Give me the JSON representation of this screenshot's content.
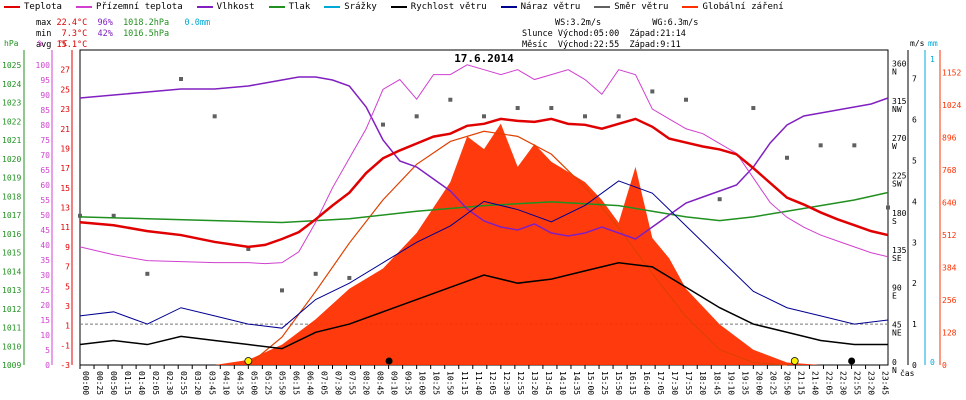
{
  "legend": [
    {
      "label": "Teplota",
      "color": "#e00000"
    },
    {
      "label": "Přízemní teplota",
      "color": "#d040d0"
    },
    {
      "label": "Vlhkost",
      "color": "#8020c0"
    },
    {
      "label": "Tlak",
      "color": "#209020"
    },
    {
      "label": "Srážky",
      "color": "#00a8d8"
    },
    {
      "label": "Rychlost větru",
      "color": "#000000"
    },
    {
      "label": "Náraz větru",
      "color": "#000090"
    },
    {
      "label": "Směr větru",
      "color": "#606060"
    },
    {
      "label": "Globální záření",
      "color": "#ff3000"
    }
  ],
  "stats": {
    "max_label": "max",
    "min_label": "min",
    "avg_label": "avg",
    "max_temp": "22.4°C",
    "max_hum": "96%",
    "max_press": "1018.2hPa",
    "max_rain": "0.0mm",
    "min_temp": "7.3°C",
    "min_hum": "42%",
    "min_press": "1016.5hPa",
    "avg_temp": "15.1°C",
    "ws": "WS:3.2m/s",
    "wg": "WG:6.3m/s",
    "sun_label": "Slunce",
    "sun_rise": "Východ:05:00",
    "sun_set": "Západ:21:14",
    "moon_label": "Měsíc",
    "moon_rise": "Východ:22:55",
    "moon_set": "Západ:9:11"
  },
  "chart_data": {
    "type": "line",
    "title": "17.6.2014",
    "x_unit_label": "čas",
    "x_tick_labels": [
      "00:00",
      "00:25",
      "00:50",
      "01:15",
      "01:40",
      "02:05",
      "02:30",
      "02:55",
      "03:20",
      "03:45",
      "04:10",
      "04:35",
      "05:00",
      "05:25",
      "05:50",
      "06:15",
      "06:40",
      "07:05",
      "07:30",
      "07:55",
      "08:20",
      "08:45",
      "09:10",
      "09:35",
      "10:00",
      "10:25",
      "10:50",
      "11:15",
      "11:40",
      "12:05",
      "12:30",
      "12:55",
      "13:20",
      "13:45",
      "14:10",
      "14:35",
      "15:00",
      "15:25",
      "15:50",
      "16:15",
      "16:40",
      "17:05",
      "17:30",
      "17:55",
      "18:20",
      "18:45",
      "19:10",
      "19:35",
      "20:00",
      "20:25",
      "20:50",
      "21:15",
      "21:40",
      "22:05",
      "22:30",
      "22:55",
      "23:20",
      "23:45"
    ],
    "axes": {
      "pressure_hpa": {
        "unit": "hPa",
        "ticks": [
          1009,
          1010,
          1011,
          1012,
          1013,
          1014,
          1015,
          1016,
          1017,
          1018,
          1019,
          1020,
          1021,
          1022,
          1023,
          1024,
          1025
        ],
        "color": "#209020"
      },
      "humidity_pct": {
        "unit": "%",
        "ticks": [
          0,
          5,
          10,
          15,
          20,
          25,
          30,
          35,
          40,
          45,
          50,
          55,
          60,
          65,
          70,
          75,
          80,
          85,
          90,
          95,
          100
        ],
        "color": "#e00000"
      },
      "temperature_c": {
        "unit": "°C",
        "ticks": [
          -3,
          -1,
          1,
          3,
          5,
          7,
          9,
          11,
          13,
          15,
          17,
          19,
          21,
          23,
          25,
          27
        ],
        "color": "#e00000"
      },
      "wind_ms": {
        "unit": "m/s",
        "ticks": [
          0,
          1,
          2,
          3,
          4,
          5,
          6,
          7
        ],
        "color": "#000000"
      },
      "rain_mm": {
        "unit": "mm",
        "ticks": [
          0,
          1
        ],
        "color": "#00a8d8"
      },
      "direction": {
        "labels": [
          {
            "deg": 360,
            "name": "N"
          },
          {
            "deg": 315,
            "name": "NW"
          },
          {
            "deg": 270,
            "name": "W"
          },
          {
            "deg": 225,
            "name": "SW"
          },
          {
            "deg": 180,
            "name": "S"
          },
          {
            "deg": 135,
            "name": "SE"
          },
          {
            "deg": 90,
            "name": "E"
          },
          {
            "deg": 45,
            "name": "NE"
          },
          {
            "deg": 0,
            "name": "N"
          }
        ]
      },
      "radiation_wm2": {
        "ticks": [
          0,
          128,
          256,
          384,
          512,
          640,
          768,
          896,
          1024,
          1152
        ],
        "color": "#ff3000"
      }
    },
    "series": [
      {
        "name": "Teplota",
        "axis": "temperature_c",
        "color": "#e00000",
        "x": [
          0,
          1,
          2,
          3,
          4,
          5,
          5.5,
          6,
          6.5,
          7,
          7.5,
          8,
          8.5,
          9,
          9.5,
          10,
          10.5,
          11,
          11.5,
          12,
          12.5,
          13,
          13.5,
          14,
          14.5,
          15,
          15.5,
          16,
          16.5,
          17,
          17.5,
          18,
          18.5,
          19,
          19.5,
          20,
          20.5,
          21,
          21.5,
          22,
          22.5,
          23,
          23.5,
          24
        ],
        "values": [
          11.5,
          11.2,
          10.6,
          10.2,
          9.5,
          9.0,
          9.2,
          9.8,
          10.5,
          11.8,
          13.2,
          14.5,
          16.5,
          18.0,
          18.8,
          19.5,
          20.2,
          20.5,
          21.3,
          21.5,
          22.0,
          21.8,
          21.7,
          22.0,
          21.5,
          21.4,
          21.0,
          21.5,
          22.0,
          21.2,
          20.0,
          19.6,
          19.2,
          18.9,
          18.4,
          17.0,
          15.5,
          14.0,
          13.3,
          12.5,
          11.8,
          11.2,
          10.6,
          10.2
        ]
      },
      {
        "name": "Přízemní teplota",
        "axis": "temperature_c",
        "color": "#d040d0",
        "x": [
          0,
          1,
          2,
          3,
          4,
          5,
          5.5,
          6,
          6.5,
          7,
          7.5,
          8,
          8.5,
          9,
          9.5,
          10,
          10.5,
          11,
          11.5,
          12,
          12.5,
          13,
          13.5,
          14,
          14.5,
          15,
          15.5,
          16,
          16.5,
          17,
          17.5,
          18,
          18.5,
          19,
          19.5,
          20,
          20.5,
          21,
          21.5,
          22,
          22.5,
          23,
          23.5,
          24
        ],
        "values": [
          9.0,
          8.2,
          7.6,
          7.5,
          7.4,
          7.4,
          7.3,
          7.4,
          8.5,
          11.5,
          15.0,
          18.0,
          21.0,
          25.0,
          26.0,
          24.0,
          26.5,
          26.5,
          27.5,
          27.0,
          26.5,
          27.0,
          26.0,
          26.5,
          27.0,
          26.0,
          24.5,
          27.0,
          26.5,
          23.0,
          22.0,
          21.0,
          20.5,
          19.5,
          18.5,
          16.0,
          13.5,
          12.0,
          11.0,
          10.2,
          9.6,
          9.0,
          8.4,
          8.0
        ]
      },
      {
        "name": "Vlhkost",
        "axis": "humidity_pct",
        "color": "#8020c0",
        "x": [
          0,
          1,
          2,
          3,
          4,
          5,
          5.5,
          6,
          6.5,
          7,
          7.5,
          8,
          8.5,
          9,
          9.5,
          10,
          10.5,
          11,
          11.5,
          12,
          12.5,
          13,
          13.5,
          14,
          14.5,
          15,
          15.5,
          16,
          16.5,
          17,
          17.5,
          18,
          18.5,
          19,
          19.5,
          20,
          20.5,
          21,
          21.5,
          22,
          22.5,
          23,
          23.5,
          24
        ],
        "values": [
          89,
          90,
          91,
          92,
          92,
          93,
          94,
          95,
          96,
          96,
          95,
          93,
          86,
          75,
          68,
          66,
          62,
          58,
          52,
          48,
          46,
          45,
          47,
          44,
          43,
          44,
          46,
          44,
          42,
          46,
          50,
          54,
          56,
          58,
          60,
          66,
          74,
          80,
          83,
          84,
          85,
          86,
          87,
          89
        ]
      },
      {
        "name": "Tlak",
        "axis": "pressure_hpa",
        "color": "#209020",
        "x": [
          0,
          2,
          4,
          6,
          8,
          10,
          12,
          14,
          16,
          17,
          18,
          19,
          20,
          21,
          22,
          23,
          24
        ],
        "values": [
          1016.9,
          1016.8,
          1016.7,
          1016.6,
          1016.8,
          1017.2,
          1017.5,
          1017.7,
          1017.5,
          1017.2,
          1016.9,
          1016.7,
          1016.9,
          1017.2,
          1017.5,
          1017.8,
          1018.2
        ]
      }
    ],
    "wind_speed": {
      "axis": "wind_ms",
      "color": "#000000",
      "x": [
        0,
        1,
        2,
        3,
        4,
        5,
        6,
        7,
        8,
        9,
        10,
        11,
        12,
        13,
        14,
        15,
        16,
        17,
        18,
        19,
        20,
        21,
        22,
        23,
        24
      ],
      "values": [
        0.5,
        0.6,
        0.5,
        0.7,
        0.6,
        0.5,
        0.4,
        0.8,
        1.0,
        1.3,
        1.6,
        1.9,
        2.2,
        2.0,
        2.1,
        2.3,
        2.5,
        2.4,
        1.9,
        1.4,
        1.0,
        0.8,
        0.6,
        0.5,
        0.5
      ]
    },
    "wind_gust": {
      "axis": "wind_ms",
      "color": "#000090",
      "x": [
        0,
        1,
        2,
        3,
        4,
        5,
        6,
        7,
        8,
        9,
        10,
        11,
        12,
        13,
        14,
        15,
        16,
        17,
        18,
        19,
        20,
        21,
        22,
        23,
        24
      ],
      "values": [
        1.2,
        1.3,
        1.0,
        1.4,
        1.2,
        1.0,
        0.9,
        1.6,
        2.0,
        2.5,
        3.0,
        3.4,
        4.0,
        3.8,
        3.5,
        3.9,
        4.5,
        4.2,
        3.4,
        2.6,
        1.8,
        1.4,
        1.2,
        1.0,
        1.1
      ]
    },
    "radiation": {
      "axis": "radiation_wm2",
      "color": "#ff3000",
      "x": [
        4,
        5,
        6,
        7,
        8,
        9,
        10,
        11,
        11.5,
        12,
        12.5,
        13,
        13.5,
        14,
        14.5,
        15,
        15.5,
        16,
        16.5,
        17,
        17.5,
        18,
        19,
        20,
        21,
        22
      ],
      "values": [
        0,
        20,
        80,
        180,
        300,
        380,
        520,
        720,
        900,
        850,
        950,
        780,
        870,
        800,
        760,
        720,
        650,
        560,
        780,
        500,
        420,
        300,
        160,
        60,
        10,
        0
      ]
    },
    "clear_sky_radiation": {
      "axis": "radiation_wm2",
      "color": "#e04000",
      "x": [
        5,
        6,
        7,
        8,
        9,
        10,
        11,
        12,
        13,
        14,
        15,
        16,
        17,
        18,
        19,
        20,
        21
      ],
      "values": [
        0,
        110,
        290,
        480,
        650,
        790,
        880,
        920,
        900,
        830,
        700,
        540,
        360,
        190,
        60,
        10,
        0
      ]
    },
    "wind_direction": {
      "axis": "direction",
      "color": "#606060",
      "x": [
        0,
        1,
        2,
        3,
        4,
        5,
        6,
        7,
        8,
        9,
        10,
        11,
        12,
        13,
        14,
        15,
        16,
        17,
        18,
        19,
        20,
        21,
        22,
        23,
        24
      ],
      "values": [
        180,
        180,
        110,
        345,
        300,
        140,
        90,
        110,
        105,
        290,
        300,
        320,
        300,
        310,
        310,
        300,
        300,
        330,
        320,
        200,
        310,
        250,
        265,
        265,
        190
      ]
    }
  }
}
